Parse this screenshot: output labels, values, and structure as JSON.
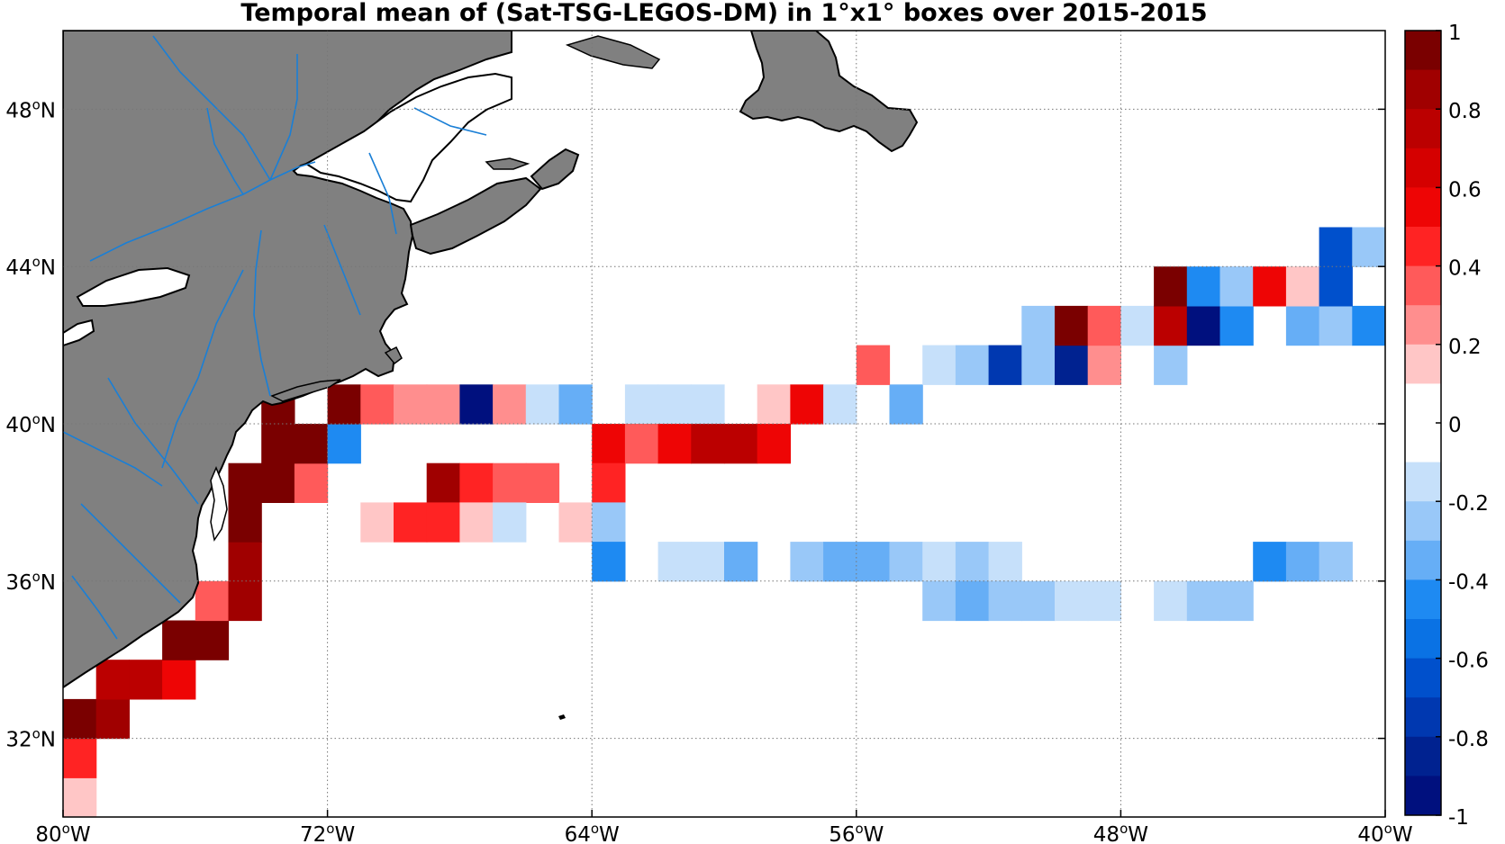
{
  "title": "Temporal mean of (Sat-TSG-LEGOS-DM) in 1°x1° boxes over 2015-2015",
  "map": {
    "lon_range": [
      -80,
      -40
    ],
    "lat_range": [
      30,
      50
    ],
    "lon_ticks": [
      {
        "value": -80,
        "label": "80",
        "deg": "o",
        "hem": "W"
      },
      {
        "value": -72,
        "label": "72",
        "deg": "o",
        "hem": "W"
      },
      {
        "value": -64,
        "label": "64",
        "deg": "o",
        "hem": "W"
      },
      {
        "value": -56,
        "label": "56",
        "deg": "o",
        "hem": "W"
      },
      {
        "value": -48,
        "label": "48",
        "deg": "o",
        "hem": "W"
      },
      {
        "value": -40,
        "label": "40",
        "deg": "o",
        "hem": "W"
      }
    ],
    "lat_ticks": [
      {
        "value": 48,
        "label": "48",
        "deg": "o",
        "hem": "N"
      },
      {
        "value": 44,
        "label": "44",
        "deg": "o",
        "hem": "N"
      },
      {
        "value": 40,
        "label": "40",
        "deg": "o",
        "hem": "N"
      },
      {
        "value": 36,
        "label": "36",
        "deg": "o",
        "hem": "N"
      },
      {
        "value": 32,
        "label": "32",
        "deg": "o",
        "hem": "N"
      }
    ],
    "grid": true,
    "land_color": "#808080",
    "river_color": "#1a7fd6"
  },
  "colorbar": {
    "range": [
      -1,
      1
    ],
    "tick_labels": [
      "1",
      "0.8",
      "0.6",
      "0.4",
      "0.2",
      "0",
      "-0.2",
      "-0.4",
      "-0.6",
      "-0.8",
      "-1"
    ],
    "colors": [
      "#7a0000",
      "#a00000",
      "#bb0000",
      "#d50000",
      "#ee0505",
      "#ff2323",
      "#ff5a5a",
      "#ff8e8e",
      "#ffc6c6",
      "#ffffff",
      "#ffffff",
      "#c6e0fa",
      "#99c8f8",
      "#66aef6",
      "#1e8af2",
      "#0a72e4",
      "#0050cc",
      "#0038b0",
      "#002290",
      "#00107e"
    ]
  },
  "chart_data": {
    "type": "heatmap",
    "title": "Temporal mean of (Sat-TSG-LEGOS-DM) in 1°x1° boxes over 2015-2015",
    "xlabel": "",
    "ylabel": "",
    "x_range": [
      -80,
      -40
    ],
    "y_range": [
      30,
      50
    ],
    "value_range": [
      -1,
      1
    ],
    "cell_size_deg": 1,
    "cells_comment_units": "lon/lat of lower-left corner (deg), value",
    "cells": [
      {
        "lon": -80,
        "lat": 30,
        "v": 0.15
      },
      {
        "lon": -80,
        "lat": 31,
        "v": 0.5
      },
      {
        "lon": -80,
        "lat": 32,
        "v": 0.95
      },
      {
        "lon": -79,
        "lat": 32,
        "v": 0.85
      },
      {
        "lon": -79,
        "lat": 33,
        "v": 0.75
      },
      {
        "lon": -78,
        "lat": 33,
        "v": 0.75
      },
      {
        "lon": -77,
        "lat": 33,
        "v": 0.55
      },
      {
        "lon": -77,
        "lat": 34,
        "v": 0.95
      },
      {
        "lon": -76,
        "lat": 34,
        "v": 0.95
      },
      {
        "lon": -76,
        "lat": 35,
        "v": 0.35
      },
      {
        "lon": -75,
        "lat": 35,
        "v": 0.85
      },
      {
        "lon": -75,
        "lat": 36,
        "v": 0.85
      },
      {
        "lon": -75,
        "lat": 37,
        "v": 0.95
      },
      {
        "lon": -75,
        "lat": 38,
        "v": 0.95
      },
      {
        "lon": -74,
        "lat": 38,
        "v": 0.95
      },
      {
        "lon": -73,
        "lat": 38,
        "v": 0.35
      },
      {
        "lon": -74,
        "lat": 39,
        "v": 0.95
      },
      {
        "lon": -73,
        "lat": 39,
        "v": 0.95
      },
      {
        "lon": -74,
        "lat": 40,
        "v": 0.95
      },
      {
        "lon": -72,
        "lat": 39,
        "v": -0.45
      },
      {
        "lon": -72,
        "lat": 40,
        "v": 0.95
      },
      {
        "lon": -71,
        "lat": 40,
        "v": 0.35
      },
      {
        "lon": -70,
        "lat": 40,
        "v": 0.25
      },
      {
        "lon": -69,
        "lat": 40,
        "v": 0.25
      },
      {
        "lon": -68,
        "lat": 40,
        "v": -0.95
      },
      {
        "lon": -67,
        "lat": 40,
        "v": 0.25
      },
      {
        "lon": -66,
        "lat": 40,
        "v": -0.15
      },
      {
        "lon": -65,
        "lat": 40,
        "v": -0.35
      },
      {
        "lon": -63,
        "lat": 40,
        "v": -0.15
      },
      {
        "lon": -62,
        "lat": 40,
        "v": -0.15
      },
      {
        "lon": -61,
        "lat": 40,
        "v": -0.15
      },
      {
        "lon": -59,
        "lat": 40,
        "v": 0.15
      },
      {
        "lon": -58,
        "lat": 40,
        "v": 0.55
      },
      {
        "lon": -57,
        "lat": 40,
        "v": -0.15
      },
      {
        "lon": -55,
        "lat": 40,
        "v": -0.35
      },
      {
        "lon": -64,
        "lat": 39,
        "v": 0.55
      },
      {
        "lon": -63,
        "lat": 39,
        "v": 0.35
      },
      {
        "lon": -62,
        "lat": 39,
        "v": 0.55
      },
      {
        "lon": -61,
        "lat": 39,
        "v": 0.75
      },
      {
        "lon": -60,
        "lat": 39,
        "v": 0.75
      },
      {
        "lon": -59,
        "lat": 39,
        "v": 0.55
      },
      {
        "lon": -69,
        "lat": 38,
        "v": 0.85
      },
      {
        "lon": -68,
        "lat": 38,
        "v": 0.5
      },
      {
        "lon": -67,
        "lat": 38,
        "v": 0.35
      },
      {
        "lon": -66,
        "lat": 38,
        "v": 0.35
      },
      {
        "lon": -64,
        "lat": 38,
        "v": 0.5
      },
      {
        "lon": -71,
        "lat": 37,
        "v": 0.15
      },
      {
        "lon": -70,
        "lat": 37,
        "v": 0.5
      },
      {
        "lon": -69,
        "lat": 37,
        "v": 0.5
      },
      {
        "lon": -68,
        "lat": 37,
        "v": 0.15
      },
      {
        "lon": -67,
        "lat": 37,
        "v": -0.15
      },
      {
        "lon": -65,
        "lat": 37,
        "v": 0.15
      },
      {
        "lon": -64,
        "lat": 37,
        "v": -0.25
      },
      {
        "lon": -64,
        "lat": 36,
        "v": -0.45
      },
      {
        "lon": -62,
        "lat": 36,
        "v": -0.15
      },
      {
        "lon": -61,
        "lat": 36,
        "v": -0.15
      },
      {
        "lon": -60,
        "lat": 36,
        "v": -0.35
      },
      {
        "lon": -58,
        "lat": 36,
        "v": -0.25
      },
      {
        "lon": -57,
        "lat": 36,
        "v": -0.3
      },
      {
        "lon": -56,
        "lat": 36,
        "v": -0.3
      },
      {
        "lon": -55,
        "lat": 36,
        "v": -0.25
      },
      {
        "lon": -54,
        "lat": 36,
        "v": -0.15
      },
      {
        "lon": -53,
        "lat": 36,
        "v": -0.25
      },
      {
        "lon": -52,
        "lat": 36,
        "v": -0.15
      },
      {
        "lon": -44,
        "lat": 36,
        "v": -0.45
      },
      {
        "lon": -43,
        "lat": 36,
        "v": -0.35
      },
      {
        "lon": -42,
        "lat": 36,
        "v": -0.25
      },
      {
        "lon": -54,
        "lat": 35,
        "v": -0.25
      },
      {
        "lon": -53,
        "lat": 35,
        "v": -0.35
      },
      {
        "lon": -52,
        "lat": 35,
        "v": -0.25
      },
      {
        "lon": -51,
        "lat": 35,
        "v": -0.25
      },
      {
        "lon": -50,
        "lat": 35,
        "v": -0.15
      },
      {
        "lon": -49,
        "lat": 35,
        "v": -0.15
      },
      {
        "lon": -47,
        "lat": 35,
        "v": -0.15
      },
      {
        "lon": -46,
        "lat": 35,
        "v": -0.25
      },
      {
        "lon": -45,
        "lat": 35,
        "v": -0.25
      },
      {
        "lon": -56,
        "lat": 41,
        "v": 0.35
      },
      {
        "lon": -54,
        "lat": 41,
        "v": -0.15
      },
      {
        "lon": -53,
        "lat": 41,
        "v": -0.25
      },
      {
        "lon": -52,
        "lat": 41,
        "v": -0.75
      },
      {
        "lon": -51,
        "lat": 41,
        "v": -0.25
      },
      {
        "lon": -50,
        "lat": 41,
        "v": -0.85
      },
      {
        "lon": -49,
        "lat": 41,
        "v": 0.3
      },
      {
        "lon": -47,
        "lat": 41,
        "v": -0.25
      },
      {
        "lon": -51,
        "lat": 42,
        "v": -0.25
      },
      {
        "lon": -50,
        "lat": 42,
        "v": 0.95
      },
      {
        "lon": -49,
        "lat": 42,
        "v": 0.35
      },
      {
        "lon": -48,
        "lat": 42,
        "v": -0.15
      },
      {
        "lon": -47,
        "lat": 42,
        "v": 0.75
      },
      {
        "lon": -46,
        "lat": 42,
        "v": -0.95
      },
      {
        "lon": -45,
        "lat": 42,
        "v": -0.45
      },
      {
        "lon": -43,
        "lat": 42,
        "v": -0.35
      },
      {
        "lon": -42,
        "lat": 42,
        "v": -0.25
      },
      {
        "lon": -41,
        "lat": 42,
        "v": -0.45
      },
      {
        "lon": -40,
        "lat": 42,
        "v": -0.45
      },
      {
        "lon": -47,
        "lat": 43,
        "v": 0.95
      },
      {
        "lon": -46,
        "lat": 43,
        "v": -0.45
      },
      {
        "lon": -45,
        "lat": 43,
        "v": -0.25
      },
      {
        "lon": -44,
        "lat": 43,
        "v": 0.55
      },
      {
        "lon": -43,
        "lat": 43,
        "v": 0.15
      },
      {
        "lon": -42,
        "lat": 43,
        "v": -0.65
      },
      {
        "lon": -40,
        "lat": 43,
        "v": -0.45
      },
      {
        "lon": -42,
        "lat": 44,
        "v": -0.65
      },
      {
        "lon": -41,
        "lat": 44,
        "v": -0.25
      },
      {
        "lon": -40,
        "lat": 44,
        "v": -0.35
      }
    ]
  }
}
